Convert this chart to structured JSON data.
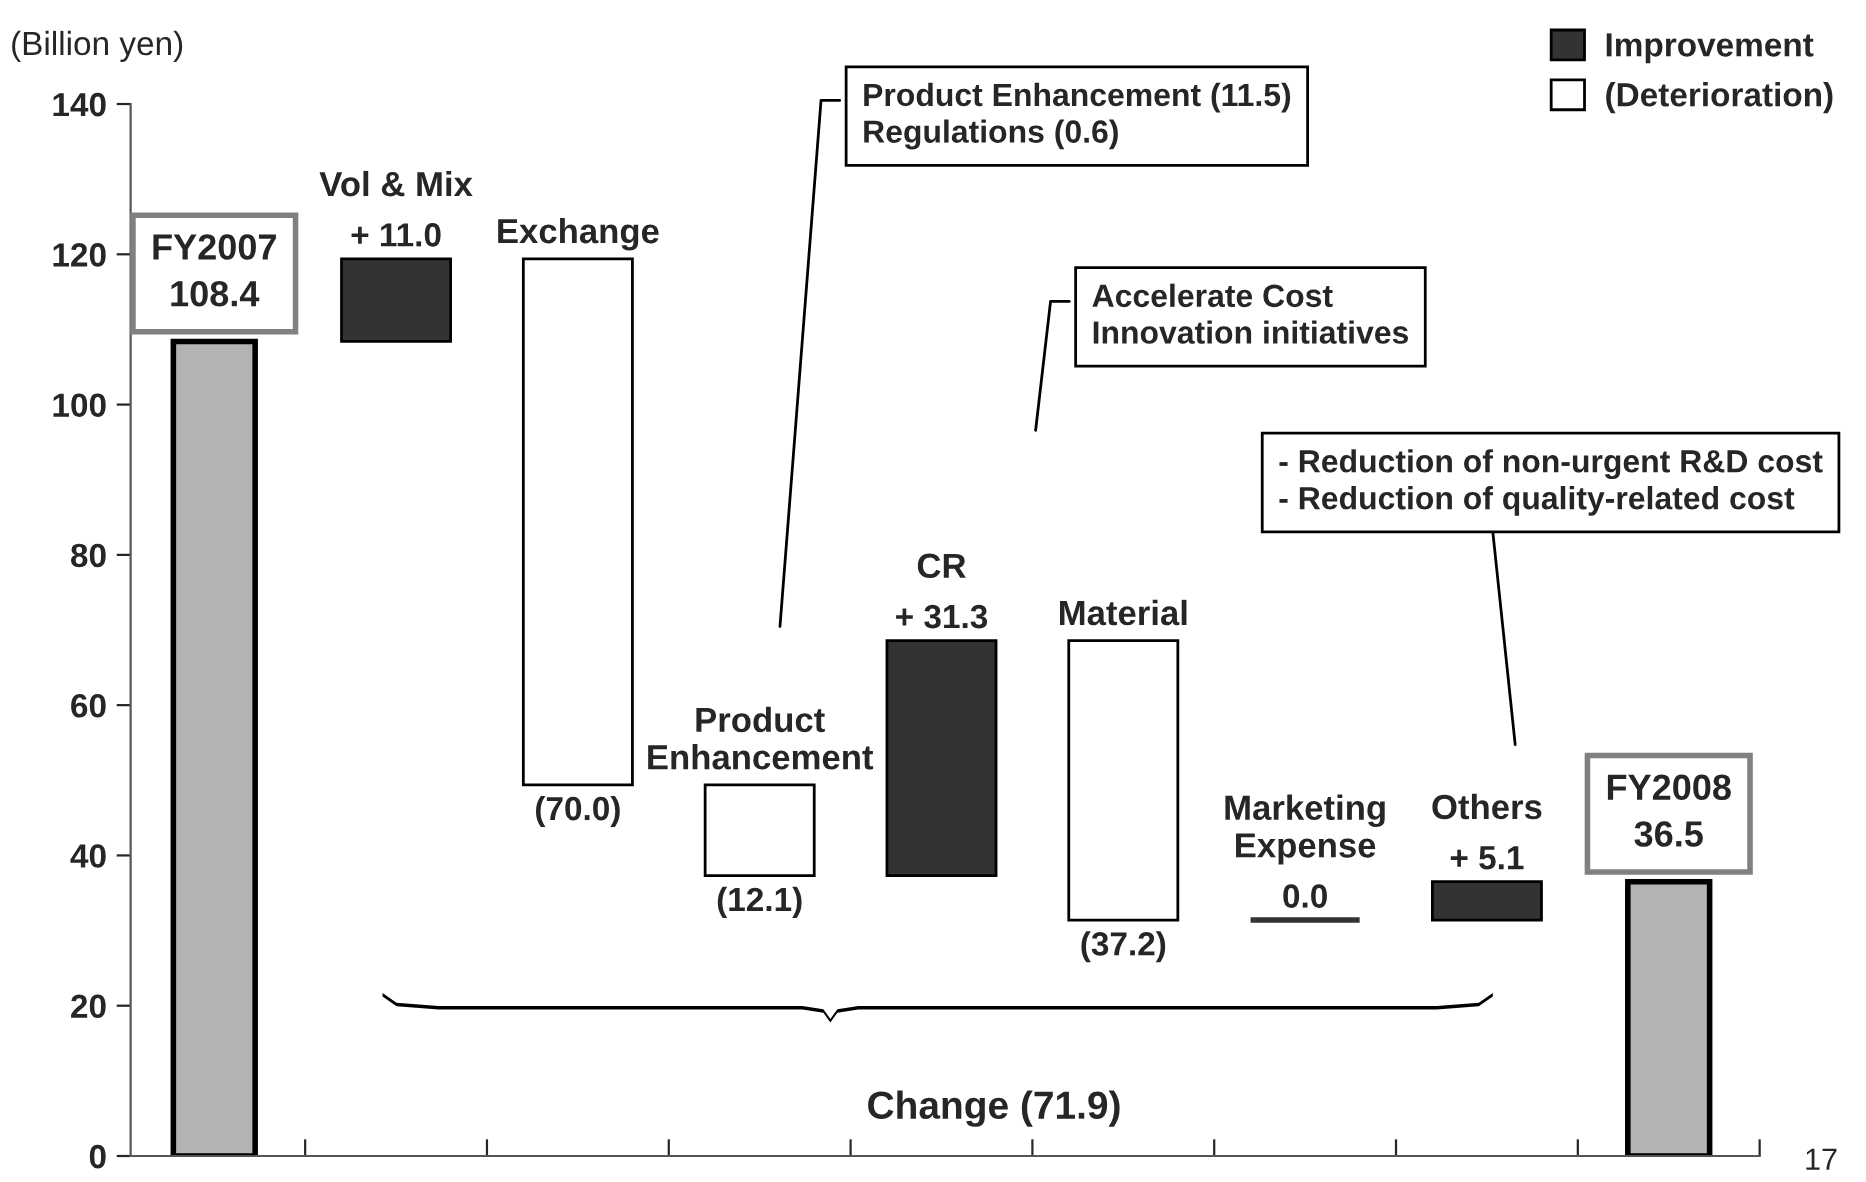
{
  "chart_data": {
    "type": "bar",
    "ylabel": "(Billion yen)",
    "categories": [
      "FY2007",
      "Vol & Mix",
      "Exchange",
      "Product Enhancement",
      "CR",
      "Material",
      "Marketing Expense",
      "Others",
      "FY2008"
    ],
    "series": [
      {
        "color": "#b3b3b3",
        "values": [
          108.4,
          null,
          null,
          null,
          null,
          null,
          null,
          null,
          36.5
        ],
        "value_labels": [
          "108.4",
          null,
          null,
          null,
          null,
          null,
          null,
          null,
          "36.5"
        ]
      },
      {
        "name": "Improvement",
        "color": "#333333",
        "values": [
          null,
          11.0,
          null,
          null,
          31.3,
          null,
          0.0,
          5.1,
          null
        ],
        "base": [
          null,
          108.4,
          null,
          null,
          37.3,
          null,
          31.4,
          31.4,
          null
        ],
        "value_labels": [
          null,
          "+ 11.0",
          null,
          null,
          "+ 31.3",
          null,
          "0.0",
          "+ 5.1",
          null
        ]
      },
      {
        "name": "(Deterioration)",
        "color": "#ffffff",
        "values": [
          null,
          null,
          -70.0,
          -12.1,
          null,
          -37.2,
          null,
          null,
          null
        ],
        "base": [
          null,
          null,
          119.4,
          49.4,
          null,
          68.6,
          null,
          null,
          null
        ],
        "value_labels": [
          null,
          null,
          "(70.0)",
          "(12.1)",
          null,
          "(37.2)",
          null,
          null,
          null
        ]
      }
    ],
    "ylim": [
      0,
      140
    ],
    "yticks": [
      0,
      20,
      40,
      60,
      80,
      100,
      120,
      140
    ],
    "grid": false,
    "legend": "top right",
    "annotations": [
      "Product Enhancement (11.5)\nRegulations (0.6)",
      "Accelerate Cost\nInnovation initiatives",
      "- Reduction of non-urgent R&D cost\n- Reduction of quality-related cost",
      "Change (71.9)",
      "17"
    ]
  }
}
